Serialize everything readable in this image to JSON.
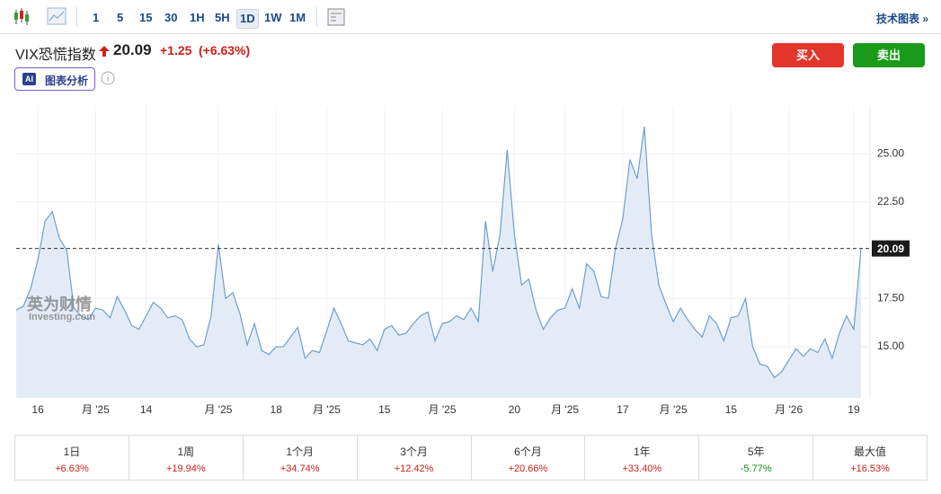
{
  "toolbar": {
    "timeframes": [
      "1",
      "5",
      "15",
      "30",
      "1H",
      "5H",
      "1D",
      "1W",
      "1M"
    ],
    "active": "1D",
    "link": "技术图表 »"
  },
  "header": {
    "name": "VIX恐慌指数",
    "price": "20.09",
    "change": "+1.25",
    "change_pct": "(+6.63%)",
    "buy": "买入",
    "sell": "卖出",
    "ai_badge": "AI",
    "ai_label": "图表分析"
  },
  "watermark": {
    "cn": "英为财情",
    "en": "Investing.com"
  },
  "chart_data": {
    "type": "area",
    "color": "#6f9fcc",
    "fill": "#e3ecf6",
    "grid": true,
    "categories": [
      null,
      null,
      null,
      "16",
      null,
      null,
      null,
      null,
      null,
      null,
      null,
      "月 '25",
      null,
      null,
      null,
      null,
      null,
      null,
      "14",
      null,
      null,
      null,
      null,
      null,
      null,
      null,
      null,
      null,
      "月 '25",
      null,
      null,
      null,
      null,
      null,
      null,
      null,
      "18",
      null,
      null,
      null,
      null,
      null,
      null,
      "月 '25",
      null,
      null,
      null,
      null,
      null,
      null,
      null,
      "15",
      null,
      null,
      null,
      null,
      null,
      null,
      null,
      "月 '25",
      null,
      null,
      null,
      null,
      null,
      null,
      null,
      null,
      null,
      "20",
      null,
      null,
      null,
      null,
      null,
      null,
      "月 '25",
      null,
      null,
      null,
      null,
      null,
      null,
      null,
      "17",
      null,
      null,
      null,
      null,
      null,
      null,
      "月 '25",
      null,
      null,
      null,
      null,
      null,
      null,
      null,
      "15",
      null,
      null,
      null,
      null,
      null,
      null,
      null,
      "月 '26",
      null,
      null,
      null,
      null,
      null,
      null,
      null,
      null,
      "19",
      null
    ],
    "values": [
      16.9,
      17.1,
      18.0,
      19.5,
      21.5,
      22.0,
      20.6,
      20.0,
      17.0,
      16.6,
      16.4,
      17.0,
      16.9,
      16.5,
      17.6,
      16.9,
      16.1,
      15.9,
      16.6,
      17.3,
      17.0,
      16.5,
      16.6,
      16.4,
      15.4,
      15.0,
      15.1,
      16.6,
      20.3,
      17.5,
      17.8,
      16.7,
      15.1,
      16.2,
      14.8,
      14.6,
      15.0,
      15.0,
      15.5,
      16.0,
      14.4,
      14.8,
      14.7,
      15.8,
      17.0,
      16.2,
      15.3,
      15.2,
      15.1,
      15.4,
      14.8,
      15.9,
      16.1,
      15.6,
      15.7,
      16.2,
      16.6,
      16.8,
      15.3,
      16.2,
      16.3,
      16.6,
      16.4,
      17.0,
      16.3,
      21.5,
      18.9,
      20.8,
      25.2,
      20.8,
      18.2,
      18.5,
      16.9,
      15.9,
      16.5,
      16.9,
      17.0,
      18.0,
      17.0,
      19.3,
      18.9,
      17.6,
      17.5,
      20.1,
      21.6,
      24.7,
      23.7,
      26.4,
      20.8,
      18.2,
      17.2,
      16.3,
      17.0,
      16.4,
      15.9,
      15.5,
      16.6,
      16.2,
      15.3,
      16.5,
      16.6,
      17.5,
      15.0,
      14.1,
      14.0,
      13.4,
      13.7,
      14.3,
      14.9,
      14.5,
      14.9,
      14.7,
      15.4,
      14.4,
      15.7,
      16.6,
      15.9,
      20.09
    ],
    "ylim": [
      12.35,
      27.47
    ],
    "yticks": [
      {
        "value": 15,
        "label": "15.00"
      },
      {
        "value": 17.5,
        "label": "17.50"
      },
      {
        "value": 22.5,
        "label": "22.50"
      },
      {
        "value": 25,
        "label": "25.00"
      }
    ]
  },
  "performance": {
    "periods": [
      "1日",
      "1周",
      "1个月",
      "3个月",
      "6个月",
      "1年",
      "5年",
      "最大值"
    ],
    "changes": [
      "+6.63%",
      "+19.94%",
      "+34.74%",
      "+12.42%",
      "+20.66%",
      "+33.40%",
      "-5.77%",
      "+16.53%"
    ]
  }
}
